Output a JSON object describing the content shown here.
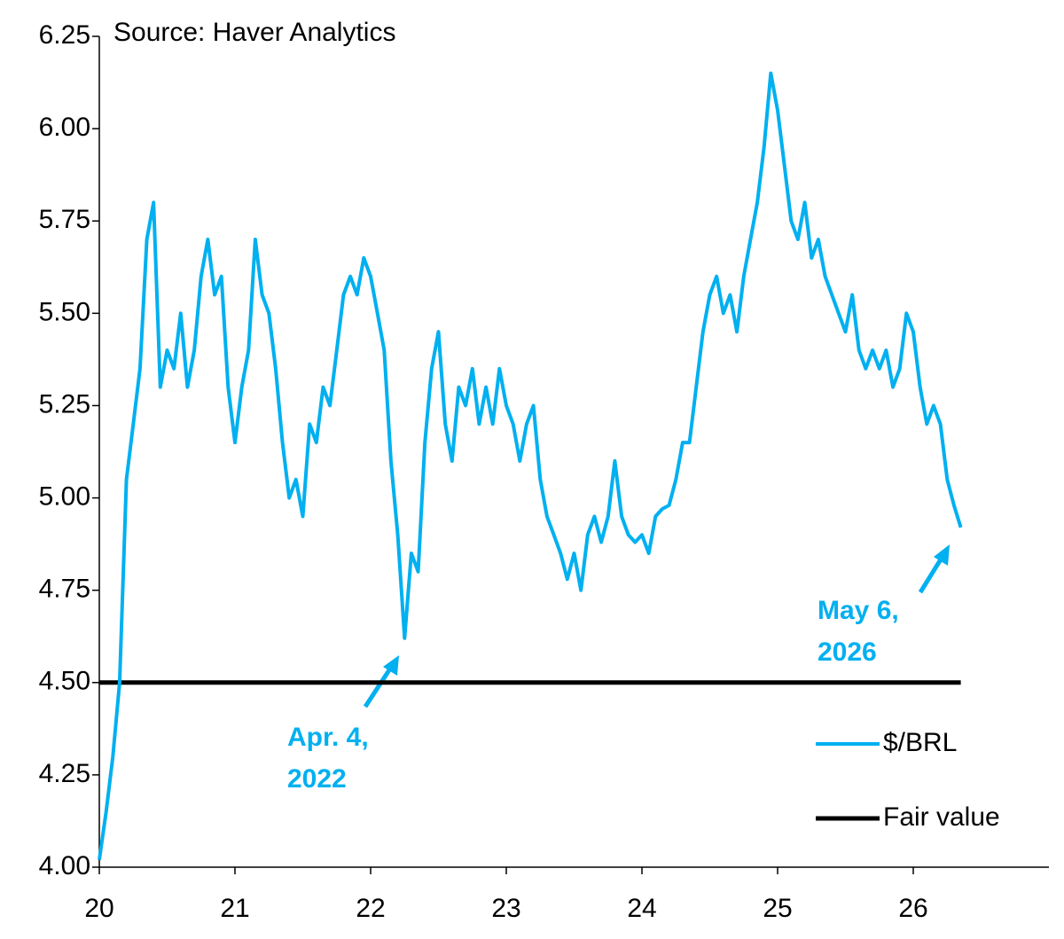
{
  "chart_data": {
    "type": "line",
    "subtitle": "Source: Haver Analytics",
    "xlim": [
      20,
      27
    ],
    "xticks": [
      20,
      21,
      22,
      23,
      24,
      25,
      26
    ],
    "ylim": [
      4,
      6.25
    ],
    "yticks": [
      {
        "value": 4,
        "label": "4.00"
      },
      {
        "value": 4.25,
        "label": "4.25"
      },
      {
        "value": 4.5,
        "label": "4.50"
      },
      {
        "value": 4.75,
        "label": "4.75"
      },
      {
        "value": 5,
        "label": "5.00"
      },
      {
        "value": 5.25,
        "label": "5.25"
      },
      {
        "value": 5.5,
        "label": "5.50"
      },
      {
        "value": 5.75,
        "label": "5.75"
      },
      {
        "value": 6,
        "label": "6.00"
      },
      {
        "value": 6.25,
        "label": "6.25"
      }
    ],
    "grid": false,
    "legend": "lower right",
    "series": [
      {
        "name": "$/BRL",
        "color": "#00b0f0",
        "width": 4,
        "x": [
          20.0,
          20.05,
          20.1,
          20.15,
          20.2,
          20.25,
          20.3,
          20.35,
          20.4,
          20.45,
          20.5,
          20.55,
          20.6,
          20.65,
          20.7,
          20.75,
          20.8,
          20.85,
          20.9,
          20.95,
          21.0,
          21.05,
          21.1,
          21.15,
          21.2,
          21.25,
          21.3,
          21.35,
          21.4,
          21.45,
          21.5,
          21.55,
          21.6,
          21.65,
          21.7,
          21.75,
          21.8,
          21.85,
          21.9,
          21.95,
          22.0,
          22.05,
          22.1,
          22.15,
          22.2,
          22.25,
          22.3,
          22.35,
          22.4,
          22.45,
          22.5,
          22.55,
          22.6,
          22.65,
          22.7,
          22.75,
          22.8,
          22.85,
          22.9,
          22.95,
          23.0,
          23.05,
          23.1,
          23.15,
          23.2,
          23.25,
          23.3,
          23.35,
          23.4,
          23.45,
          23.5,
          23.55,
          23.6,
          23.65,
          23.7,
          23.75,
          23.8,
          23.85,
          23.9,
          23.95,
          24.0,
          24.05,
          24.1,
          24.15,
          24.2,
          24.25,
          24.3,
          24.35,
          24.4,
          24.45,
          24.5,
          24.55,
          24.6,
          24.65,
          24.7,
          24.75,
          24.8,
          24.85,
          24.9,
          24.95,
          25.0,
          25.05,
          25.1,
          25.15,
          25.2,
          25.25,
          25.3,
          25.35,
          25.4,
          25.45,
          25.5,
          25.55,
          25.6,
          25.65,
          25.7,
          25.75,
          25.8,
          25.85,
          25.9,
          25.95,
          26.0,
          26.05,
          26.1,
          26.15,
          26.2,
          26.25,
          26.3,
          26.35
        ],
        "values": [
          4.02,
          4.15,
          4.3,
          4.5,
          5.05,
          5.2,
          5.35,
          5.7,
          5.8,
          5.3,
          5.4,
          5.35,
          5.5,
          5.3,
          5.4,
          5.6,
          5.7,
          5.55,
          5.6,
          5.3,
          5.15,
          5.3,
          5.4,
          5.7,
          5.55,
          5.5,
          5.35,
          5.15,
          5.0,
          5.05,
          4.95,
          5.2,
          5.15,
          5.3,
          5.25,
          5.4,
          5.55,
          5.6,
          5.55,
          5.65,
          5.6,
          5.5,
          5.4,
          5.1,
          4.9,
          4.62,
          4.85,
          4.8,
          5.15,
          5.35,
          5.45,
          5.2,
          5.1,
          5.3,
          5.25,
          5.35,
          5.2,
          5.3,
          5.2,
          5.35,
          5.25,
          5.2,
          5.1,
          5.2,
          5.25,
          5.05,
          4.95,
          4.9,
          4.85,
          4.78,
          4.85,
          4.75,
          4.9,
          4.95,
          4.88,
          4.95,
          5.1,
          4.95,
          4.9,
          4.88,
          4.9,
          4.85,
          4.95,
          4.97,
          4.98,
          5.05,
          5.15,
          5.15,
          5.3,
          5.45,
          5.55,
          5.6,
          5.5,
          5.55,
          5.45,
          5.6,
          5.7,
          5.8,
          5.95,
          6.15,
          6.05,
          5.9,
          5.75,
          5.7,
          5.8,
          5.65,
          5.7,
          5.6,
          5.55,
          5.5,
          5.45,
          5.55,
          5.4,
          5.35,
          5.4,
          5.35,
          5.4,
          5.3,
          5.35,
          5.5,
          5.45,
          5.3,
          5.2,
          5.25,
          5.2,
          5.05,
          4.98,
          4.92
        ]
      },
      {
        "name": "Fair value",
        "color": "#000000",
        "width": 5,
        "x": [
          20,
          26.35
        ],
        "values": [
          4.5,
          4.5
        ]
      }
    ],
    "annotations": [
      {
        "text": [
          "Apr. 4,",
          "2022"
        ],
        "color": "#00b0f0"
      },
      {
        "text": [
          "May 6,",
          "2026"
        ],
        "color": "#00b0f0"
      }
    ]
  }
}
